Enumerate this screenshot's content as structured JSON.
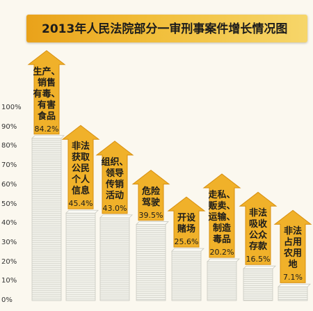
{
  "title": "2013年人民法院部分一审刑事案件增长情况图",
  "chart_data": {
    "type": "bar",
    "title": "2013年人民法院部分一审刑事案件增长情况图",
    "ylim": [
      0,
      100
    ],
    "yticks": [
      "0%",
      "10%",
      "20%",
      "30%",
      "40%",
      "50%",
      "60%",
      "70%",
      "80%",
      "90%",
      "100%"
    ],
    "categories": [
      "生产、销售有毒、有害食品",
      "非法获取公民个人信息",
      "组织、领导传销活动",
      "危险驾驶",
      "开设赌场",
      "走私、贩卖、运输、制造毒品",
      "非法吸收公众存款",
      "非法占用农用地"
    ],
    "category_lines": [
      [
        "生产、",
        "销售",
        "有毒、",
        "有害",
        "食品"
      ],
      [
        "非法",
        "获取",
        "公民",
        "个人",
        "信息"
      ],
      [
        "组织、",
        "领导",
        "传销",
        "活动"
      ],
      [
        "危险",
        "驾驶"
      ],
      [
        "开设",
        "赌场"
      ],
      [
        "走私、",
        "贩卖、",
        "运输、",
        "制造",
        "毒品"
      ],
      [
        "非法",
        "吸收",
        "公众",
        "存款"
      ],
      [
        "非法",
        "占用",
        "农用",
        "地"
      ]
    ],
    "values": [
      84.2,
      45.4,
      43.0,
      39.5,
      25.6,
      20.2,
      16.5,
      7.1
    ],
    "value_labels": [
      "84.2%",
      "45.4%",
      "43.0%",
      "39.5%",
      "25.6%",
      "20.2%",
      "16.5%",
      "7.1%"
    ],
    "grid": false,
    "legend": "none"
  },
  "colors": {
    "arrow": "#f0b12a",
    "arrow_edge": "#d78f10",
    "stack_light": "#f1f1ea",
    "stack_dark": "#c9c9c0",
    "title_bg": "#f1be3a"
  }
}
